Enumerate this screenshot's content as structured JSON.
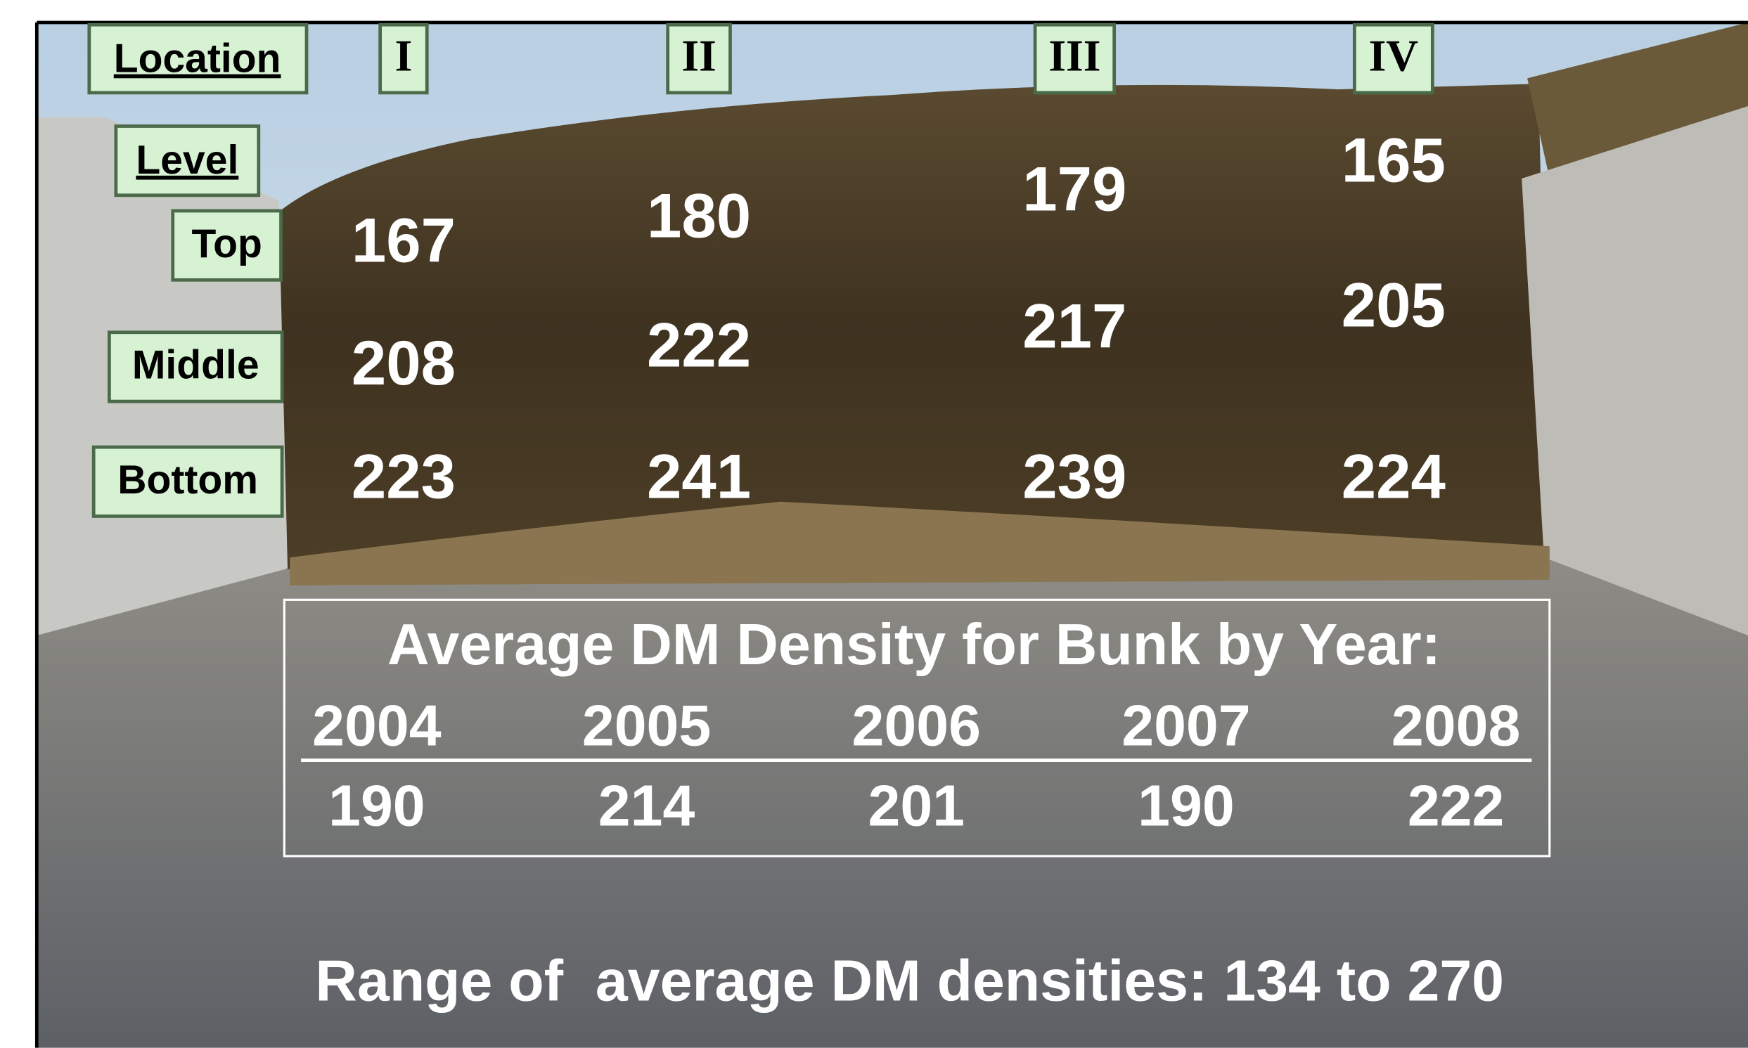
{
  "location_label": "Location",
  "level_label": "Level",
  "locations": [
    "I",
    "II",
    "III",
    "IV"
  ],
  "levels": [
    "Top",
    "Middle",
    "Bottom"
  ],
  "values": [
    [
      167,
      180,
      179,
      165
    ],
    [
      208,
      222,
      217,
      205
    ],
    [
      223,
      241,
      239,
      224
    ]
  ],
  "summary": {
    "title": "Average DM Density for Bunk by Year:",
    "years": [
      "2004",
      "2005",
      "2006",
      "2007",
      "2008"
    ],
    "averages": [
      190,
      214,
      201,
      190,
      222
    ]
  },
  "footer": "Range of  average DM densities: 134 to 270"
}
